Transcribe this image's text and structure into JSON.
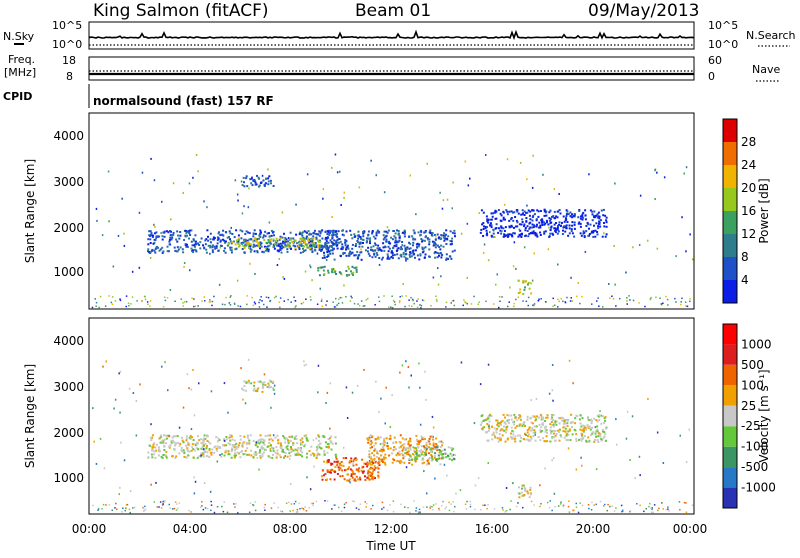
{
  "header": {
    "station": "King Salmon (fitACF)",
    "beam": "Beam 01",
    "date": "09/May/2013"
  },
  "top_panels": {
    "nsky_label": "N.Sky",
    "nsky_scale": [
      "10^5",
      "10^0"
    ],
    "nsearch_label": "N.Search",
    "nsearch_scale": [
      "10^5",
      "10^0"
    ],
    "freq_label": "Freq.",
    "freq_unit": "[MHz]",
    "freq_scale": [
      "18",
      "8"
    ],
    "nave_label": "Nave",
    "nave_scale": [
      "60",
      "0"
    ],
    "cpid_label": "CPID",
    "cpid_text": "normalsound (fast) 157 RF"
  },
  "chart_data": [
    {
      "type": "heatmap",
      "name": "power-panel",
      "xlabel": "",
      "ylabel": "Slant Range [km]",
      "xlim": [
        0,
        24
      ],
      "ylim": [
        200,
        4500
      ],
      "yticks": [
        "1000",
        "2000",
        "3000",
        "4000"
      ],
      "colorbar": {
        "label": "Power [dB]",
        "ticks": [
          "4",
          "8",
          "12",
          "16",
          "20",
          "24",
          "28"
        ],
        "colors": [
          "#0a1ee6",
          "#1e50c8",
          "#2e7d8c",
          "#3ca060",
          "#96c81e",
          "#f0b400",
          "#f06e00",
          "#dc0000"
        ]
      },
      "regions": [
        {
          "t0": 2.3,
          "t1": 9.8,
          "r0": 1450,
          "r1": 1950,
          "level": 1
        },
        {
          "t0": 5.5,
          "t1": 9.2,
          "r0": 1550,
          "r1": 1780,
          "level": 4
        },
        {
          "t0": 6.0,
          "t1": 7.3,
          "r0": 2900,
          "r1": 3150,
          "level": 1
        },
        {
          "t0": 9.2,
          "t1": 14.5,
          "r0": 1300,
          "r1": 1950,
          "level": 1
        },
        {
          "t0": 9.0,
          "t1": 10.6,
          "r0": 950,
          "r1": 1150,
          "level": 3
        },
        {
          "t0": 15.5,
          "t1": 20.5,
          "r0": 1800,
          "r1": 2400,
          "level": 0
        },
        {
          "t0": 17.0,
          "t1": 17.5,
          "r0": 550,
          "r1": 850,
          "level": 4
        }
      ]
    },
    {
      "type": "heatmap",
      "name": "velocity-panel",
      "xlabel": "Time UT",
      "ylabel": "Slant Range [km]",
      "xlim": [
        0,
        24
      ],
      "ylim": [
        200,
        4500
      ],
      "xticks": [
        "00:00",
        "04:00",
        "08:00",
        "12:00",
        "16:00",
        "20:00",
        "00:00"
      ],
      "yticks": [
        "1000",
        "2000",
        "3000",
        "4000"
      ],
      "colorbar": {
        "label": "Velocity [m s⁻¹]",
        "ticks": [
          "1000",
          "500",
          "100",
          "25",
          "-25",
          "-100",
          "-500",
          "-1000"
        ],
        "colors": [
          "#2832b4",
          "#2878c8",
          "#3c9664",
          "#64c83c",
          "#c8c8c8",
          "#f0a000",
          "#f06400",
          "#dc1e1e",
          "#ff0000"
        ]
      },
      "regions": [
        {
          "t0": 2.3,
          "t1": 9.8,
          "r0": 1450,
          "r1": 1950,
          "level": 4
        },
        {
          "t0": 6.0,
          "t1": 7.3,
          "r0": 2900,
          "r1": 3150,
          "level": 4
        },
        {
          "t0": 9.2,
          "t1": 11.5,
          "r0": 950,
          "r1": 1450,
          "level": 6
        },
        {
          "t0": 11.0,
          "t1": 14.0,
          "r0": 1300,
          "r1": 1950,
          "level": 5
        },
        {
          "t0": 12.5,
          "t1": 14.5,
          "r0": 1400,
          "r1": 1700,
          "level": 3
        },
        {
          "t0": 15.5,
          "t1": 20.5,
          "r0": 1800,
          "r1": 2400,
          "level": 4
        },
        {
          "t0": 17.0,
          "t1": 17.6,
          "r0": 550,
          "r1": 850,
          "level": 4
        }
      ]
    }
  ]
}
